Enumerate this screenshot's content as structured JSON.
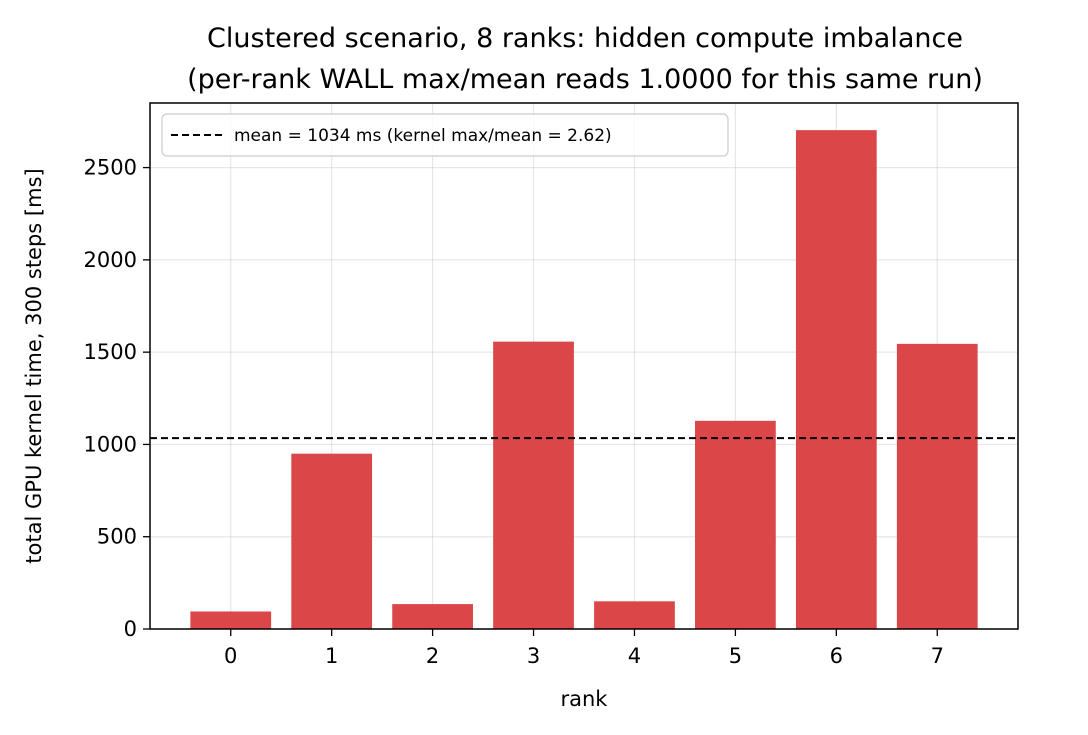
{
  "chart_data": {
    "type": "bar",
    "title": "Clustered scenario, 8 ranks: hidden compute imbalance",
    "subtitle": "(per-rank WALL max/mean reads 1.0000 for this same run)",
    "xlabel": "rank",
    "ylabel": "total GPU kernel time, 300 steps [ms]",
    "categories": [
      "0",
      "1",
      "2",
      "3",
      "4",
      "5",
      "6",
      "7"
    ],
    "values": [
      95,
      950,
      135,
      1557,
      150,
      1128,
      2703,
      1545
    ],
    "ylim": [
      0,
      2850
    ],
    "yticks": [
      0,
      500,
      1000,
      1500,
      2000,
      2500
    ],
    "grid": true,
    "bar_color": "#db4749",
    "reference_line": {
      "value": 1034,
      "label": "mean = 1034 ms (kernel max/mean = 2.62)",
      "color": "#000000",
      "style": "dashed"
    },
    "legend_position": "top-left"
  }
}
